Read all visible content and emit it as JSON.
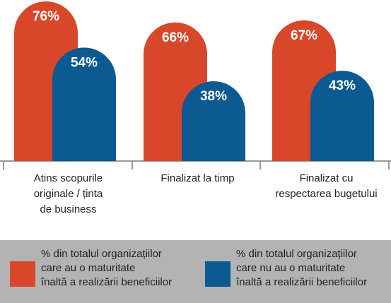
{
  "chart_data": {
    "type": "bar",
    "categories": [
      "Atins scopurile\noriginale / ținta\nde business",
      "Finalizat la timp",
      "Finalizat cu\nrespectarea bugetului"
    ],
    "series": [
      {
        "name": "% din totalul organizațiilor\ncare au o maturitate\nînaltă a realizării beneficiilor",
        "color": "#d9472b",
        "values": [
          76,
          66,
          67
        ],
        "value_labels": [
          "76%",
          "66%",
          "67%"
        ]
      },
      {
        "name": "% din totalul organizațiilor\ncare nu au o maturitate\nînaltă a realizării beneficiilor",
        "color": "#0b5a92",
        "values": [
          54,
          38,
          43
        ],
        "value_labels": [
          "54%",
          "38%",
          "43%"
        ]
      }
    ]
  }
}
